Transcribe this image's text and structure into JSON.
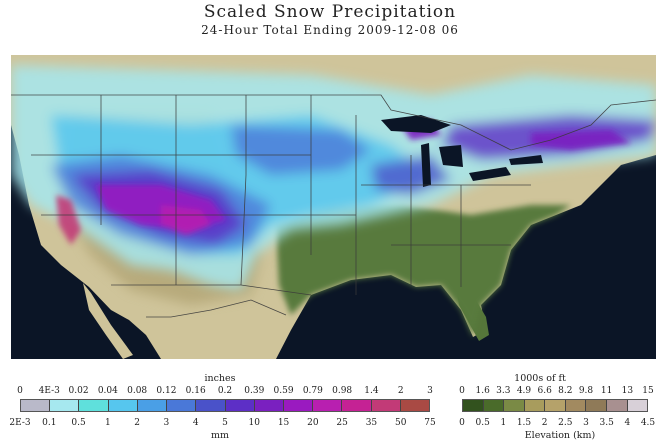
{
  "title": "Scaled Snow Precipitation",
  "subtitle": "24-Hour Total Ending 2009-12-08 06",
  "colors": {
    "land": "#cfc49a",
    "ocean": "#0b1526",
    "border": "#3a3a3a",
    "lake": "#0b1526"
  },
  "precip_legend": {
    "unit_top": "inches",
    "unit_bottom": "mm",
    "inch_ticks": [
      "0",
      "4E-3",
      "0.02",
      "0.04",
      "0.08",
      "0.12",
      "0.16",
      "0.2",
      "0.39",
      "0.59",
      "0.79",
      "0.98",
      "1.4",
      "2",
      "3"
    ],
    "mm_ticks": [
      "2E-3",
      "0.1",
      "0.5",
      "1",
      "2",
      "3",
      "4",
      "5",
      "10",
      "15",
      "20",
      "25",
      "35",
      "50",
      "75"
    ],
    "swatches": [
      "#b9b9c9",
      "#a6e8ef",
      "#5fe0dc",
      "#56c6ee",
      "#4a9fe6",
      "#4a78d8",
      "#4a52c9",
      "#5d2fc6",
      "#7a20c0",
      "#9a1ac0",
      "#b81fb0",
      "#c52294",
      "#c23a77",
      "#a94a44"
    ]
  },
  "elev_legend": {
    "unit_top": "1000s of ft",
    "unit_bottom": "Elevation (km)",
    "ft_ticks": [
      "0",
      "1.6",
      "3.3",
      "4.9",
      "6.6",
      "8.2",
      "9.8",
      "11",
      "13",
      "15"
    ],
    "km_ticks": [
      "0",
      "0.5",
      "1",
      "1.5",
      "2",
      "2.5",
      "3",
      "3.5",
      "4",
      "4.5"
    ],
    "swatches": [
      "#32521e",
      "#4a6b2a",
      "#7a8a45",
      "#a89c5d",
      "#b5a26a",
      "#a28a60",
      "#8f7a58",
      "#a89090",
      "#d8d0d8"
    ]
  }
}
